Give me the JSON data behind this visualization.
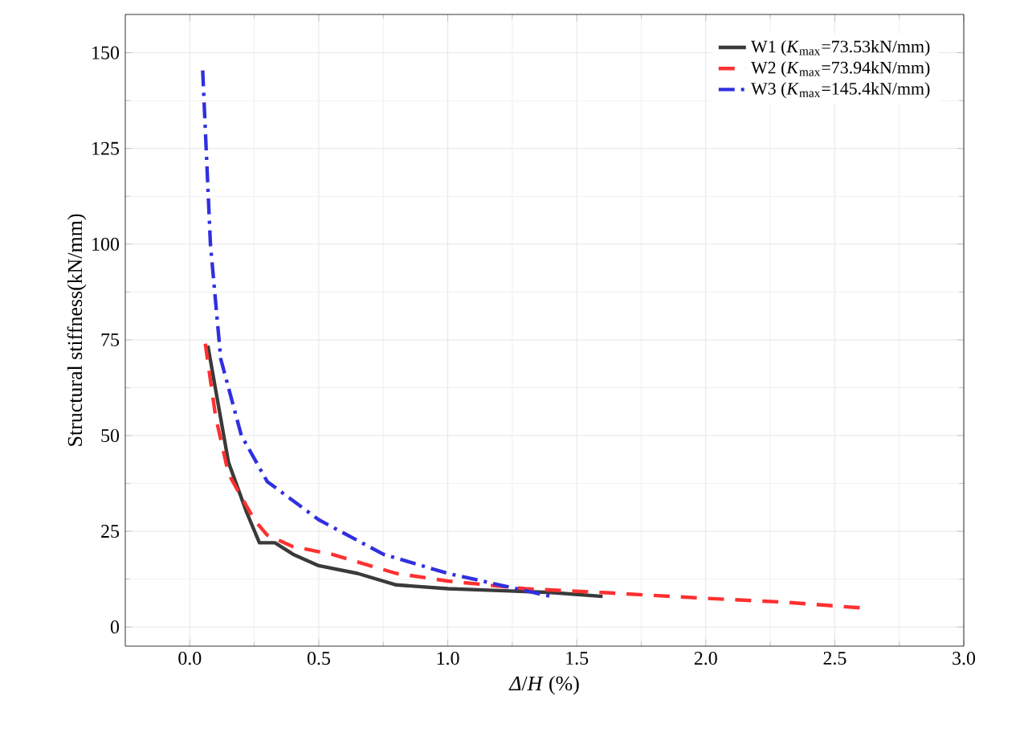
{
  "chart_data": {
    "type": "line",
    "xlabel": "*Δ*/*H* (%)",
    "ylabel": "Structural stiffness(kN/mm)",
    "xlim": [
      -0.25,
      3.0
    ],
    "ylim": [
      -5,
      160
    ],
    "xticks": [
      {
        "value": 0,
        "label": "0.0"
      },
      0.5,
      {
        "value": 1,
        "label": "1.0"
      },
      1.5,
      {
        "value": 2,
        "label": "2.0"
      },
      2.5,
      {
        "value": 3,
        "label": "3.0"
      }
    ],
    "yticks": [
      0,
      25,
      50,
      75,
      100,
      125,
      150
    ],
    "grid": true,
    "legend": "top right",
    "series": [
      {
        "name": "W1 (*K*$_{max}$=73.53kN/mm)",
        "color": "#3a3a3a",
        "line_style": "solid",
        "x": [
          0.07,
          0.15,
          0.22,
          0.27,
          0.33,
          0.4,
          0.5,
          0.65,
          0.8,
          1.0,
          1.2,
          1.4,
          1.6
        ],
        "values": [
          73.5,
          43,
          30,
          22,
          22,
          19,
          16,
          14,
          11,
          10,
          9.5,
          9,
          8
        ]
      },
      {
        "name": "W2 (*K*$_{max}$=73.94kN/mm)",
        "color": "#ff3030",
        "line_style": "dashed",
        "x": [
          0.06,
          0.1,
          0.15,
          0.25,
          0.3,
          0.4,
          0.55,
          0.8,
          1.0,
          1.3,
          1.6,
          2.0,
          2.3,
          2.6
        ],
        "values": [
          74,
          55,
          40,
          28,
          24,
          21,
          19,
          14,
          12,
          10,
          9,
          7.5,
          6.5,
          5
        ]
      },
      {
        "name": "W3 (*K*$_{max}$=145.4kN/mm)",
        "color": "#3030e0",
        "line_style": "dashdot",
        "x": [
          0.05,
          0.08,
          0.12,
          0.2,
          0.3,
          0.5,
          0.75,
          1.0,
          1.2,
          1.4
        ],
        "values": [
          145.4,
          100,
          70,
          50,
          38,
          28,
          19,
          14,
          11,
          8
        ]
      }
    ]
  }
}
